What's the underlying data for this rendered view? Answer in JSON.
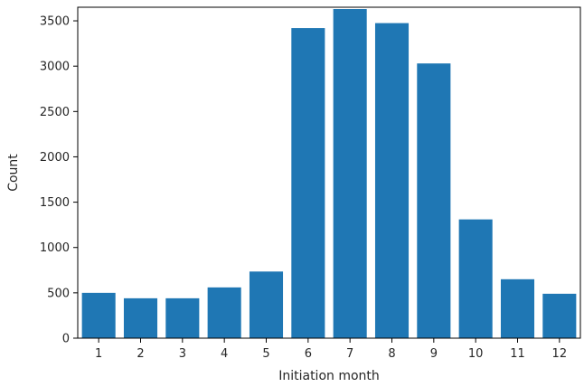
{
  "chart_data": {
    "type": "bar",
    "title": "",
    "xlabel": "Initiation month",
    "ylabel": "Count",
    "categories": [
      "1",
      "2",
      "3",
      "4",
      "5",
      "6",
      "7",
      "8",
      "9",
      "10",
      "11",
      "12"
    ],
    "values": [
      500,
      440,
      440,
      560,
      735,
      3420,
      3630,
      3475,
      3030,
      1310,
      650,
      490
    ],
    "ylim": [
      0,
      3650
    ],
    "yticks": [
      0,
      500,
      1000,
      1500,
      2000,
      2500,
      3000,
      3500
    ],
    "bar_color": "#1f77b4",
    "grid": false
  }
}
